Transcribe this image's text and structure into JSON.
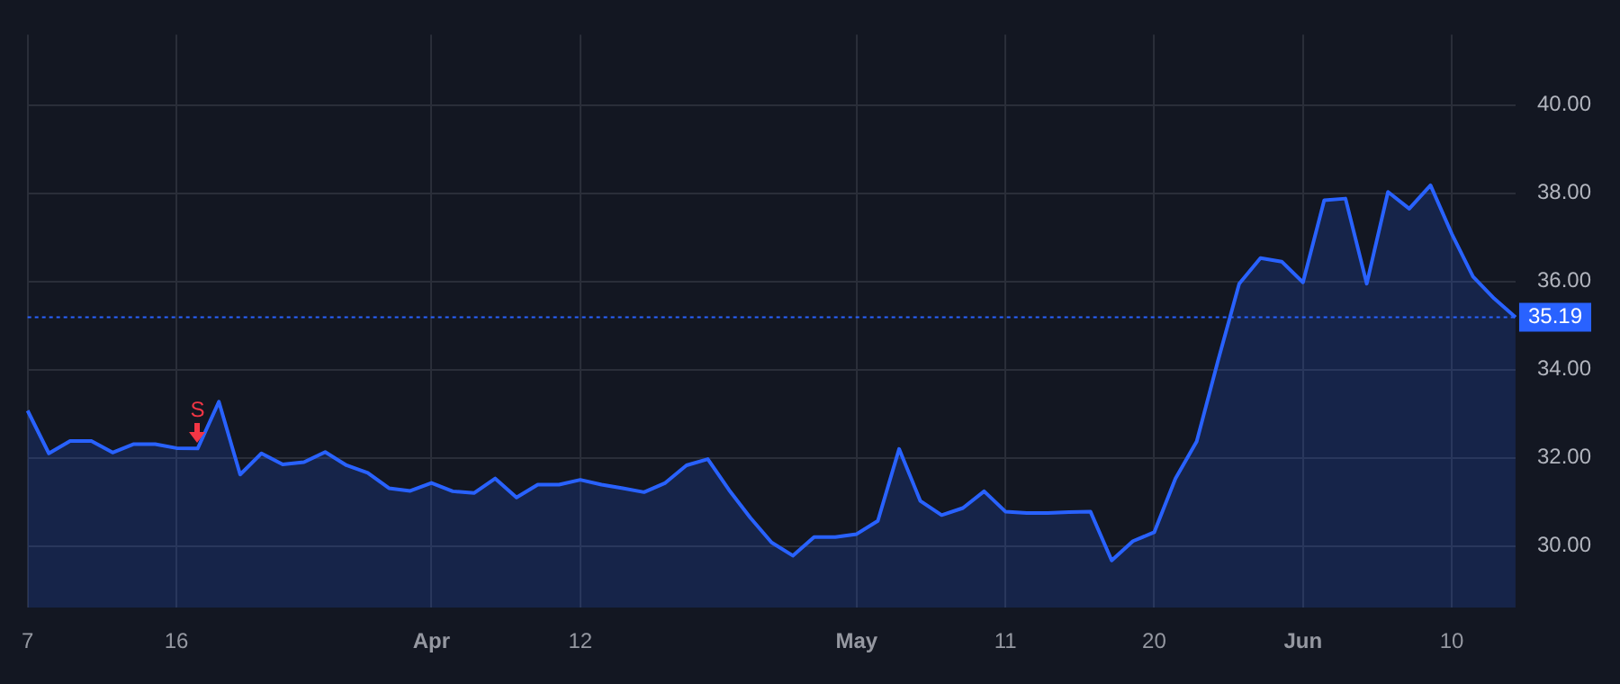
{
  "chart_data": {
    "type": "area",
    "categories": [
      "7",
      null,
      null,
      null,
      null,
      null,
      null,
      "16",
      null,
      null,
      null,
      null,
      null,
      null,
      null,
      null,
      null,
      null,
      null,
      "Apr",
      null,
      null,
      null,
      null,
      null,
      null,
      "12",
      null,
      null,
      null,
      null,
      null,
      null,
      null,
      null,
      null,
      null,
      null,
      null,
      "May",
      null,
      null,
      null,
      null,
      null,
      null,
      "11",
      null,
      null,
      null,
      null,
      null,
      null,
      "20",
      null,
      null,
      null,
      null,
      null,
      null,
      "Jun",
      null,
      null,
      null,
      null,
      null,
      null,
      "10",
      null,
      null,
      null
    ],
    "series": [
      {
        "color": "#2962ff",
        "values": [
          33.07,
          32.1,
          32.38,
          32.38,
          32.12,
          32.31,
          32.31,
          32.22,
          32.21,
          33.27,
          31.62,
          32.1,
          31.85,
          31.9,
          32.13,
          31.83,
          31.66,
          31.31,
          31.25,
          31.43,
          31.24,
          31.2,
          31.53,
          31.1,
          31.39,
          31.39,
          31.5,
          31.39,
          31.31,
          31.22,
          31.43,
          31.83,
          31.97,
          31.27,
          30.64,
          30.08,
          29.78,
          30.2,
          30.2,
          30.27,
          30.57,
          32.2,
          31.02,
          30.7,
          30.86,
          31.24,
          30.78,
          30.75,
          30.75,
          30.77,
          30.78,
          29.67,
          30.11,
          30.31,
          31.53,
          32.37,
          34.2,
          35.95,
          36.53,
          36.45,
          35.98,
          37.84,
          37.88,
          35.95,
          38.03,
          37.65,
          38.18,
          37.08,
          36.11,
          35.61,
          35.19
        ]
      }
    ],
    "ylim": [
      28.6,
      41.6
    ],
    "yticks": [
      {
        "value": 30,
        "label": "30.00"
      },
      {
        "value": 32,
        "label": "32.00"
      },
      {
        "value": 34,
        "label": "34.00"
      },
      {
        "value": 36,
        "label": "36.00"
      },
      {
        "value": 38,
        "label": "38.00"
      },
      {
        "value": 40,
        "label": "40.00"
      }
    ],
    "grid": true,
    "legend": false,
    "ref_lines": [
      {
        "axis": "y",
        "value": 35.19,
        "label": "35.19",
        "color": "#2962ff",
        "line_style": "dotted"
      }
    ],
    "annotations": [
      {
        "text": "S",
        "y": 32.21
      }
    ]
  }
}
